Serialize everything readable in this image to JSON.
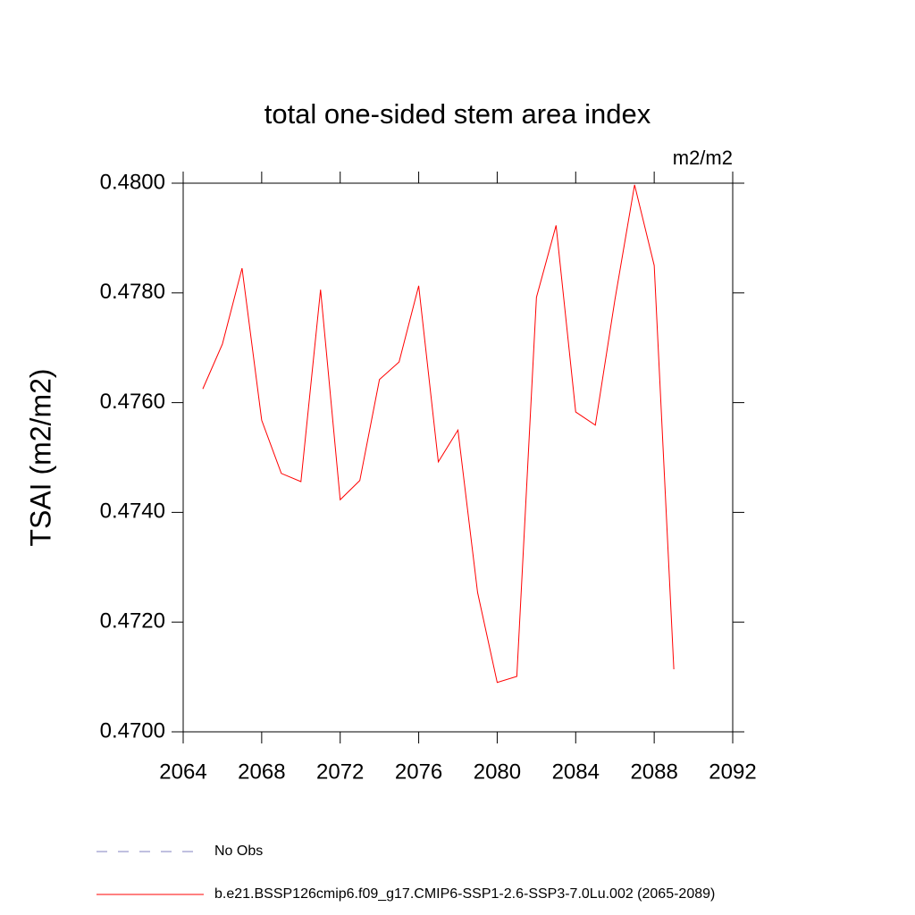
{
  "chart_data": {
    "type": "line",
    "title": "total one-sided stem area index",
    "units_label": "m2/m2",
    "y_label": "TSAI  (m2/m2)",
    "x": [
      2065,
      2066,
      2067,
      2068,
      2069,
      2070,
      2071,
      2072,
      2073,
      2074,
      2075,
      2076,
      2077,
      2078,
      2079,
      2080,
      2081,
      2082,
      2083,
      2084,
      2085,
      2086,
      2087,
      2088,
      2089
    ],
    "series": [
      {
        "name": "b.e21.BSSP126cmip6.f09_g17.CMIP6-SSP1-2.6-SSP3-7.0Lu.002 (2065-2089)",
        "color": "#ff0000",
        "values": [
          0.47625,
          0.47707,
          0.47845,
          0.47568,
          0.47471,
          0.47456,
          0.47806,
          0.47423,
          0.47458,
          0.47642,
          0.47674,
          0.47813,
          0.47492,
          0.4755,
          0.47254,
          0.4709,
          0.47101,
          0.47792,
          0.47923,
          0.47583,
          0.47559,
          0.47788,
          0.47997,
          0.4785,
          0.47114
        ]
      }
    ],
    "obs_legend": {
      "name": "No Obs",
      "color": "#8080c0"
    },
    "xlim": [
      2064,
      2092
    ],
    "xticks": [
      2064,
      2068,
      2072,
      2076,
      2080,
      2084,
      2088,
      2092
    ],
    "ylim": [
      0.47,
      0.48
    ],
    "yticks": [
      {
        "value": 0.47,
        "label": "0.4700"
      },
      {
        "value": 0.472,
        "label": "0.4720"
      },
      {
        "value": 0.474,
        "label": "0.4740"
      },
      {
        "value": 0.476,
        "label": "0.4760"
      },
      {
        "value": 0.478,
        "label": "0.4780"
      },
      {
        "value": 0.48,
        "label": "0.4800"
      }
    ]
  }
}
